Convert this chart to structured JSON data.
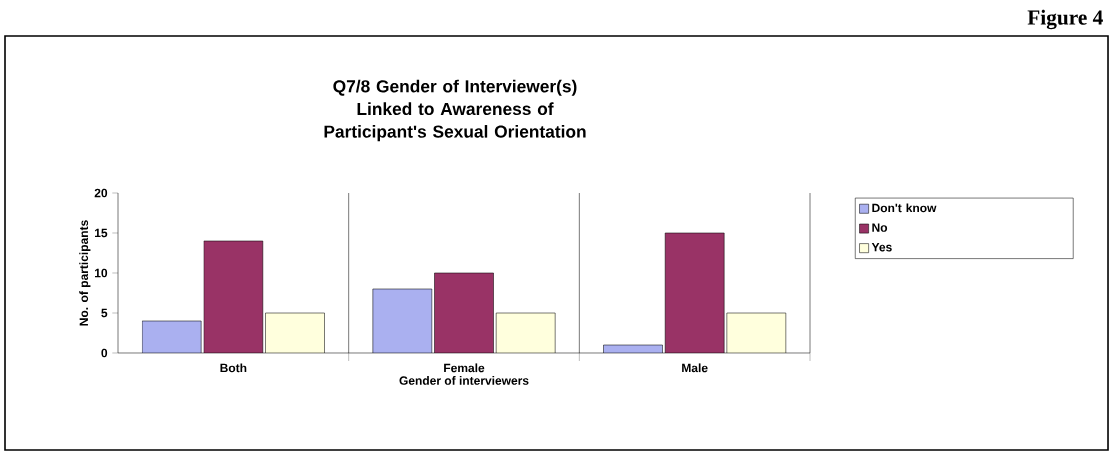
{
  "chart_data": {
    "type": "bar",
    "title": "Q7/8 Gender of Interviewer(s) Linked to Awareness of Participant's Sexual Orientation",
    "xlabel": "Gender of interviewers",
    "ylabel": "No. of participants",
    "categories": [
      "Both",
      "Female",
      "Male"
    ],
    "series": [
      {
        "name": "Don't know",
        "color": "#aab0f0",
        "values": [
          4,
          8,
          1
        ]
      },
      {
        "name": "No",
        "color": "#993366",
        "values": [
          14,
          10,
          15
        ]
      },
      {
        "name": "Yes",
        "color": "#ffffdd",
        "values": [
          5,
          5,
          5
        ]
      }
    ],
    "ylim": [
      0,
      20
    ],
    "yticks": [
      0,
      5,
      10,
      15,
      20
    ],
    "grid": "x",
    "legend": "right",
    "annotations": [
      "Figure 4"
    ]
  }
}
